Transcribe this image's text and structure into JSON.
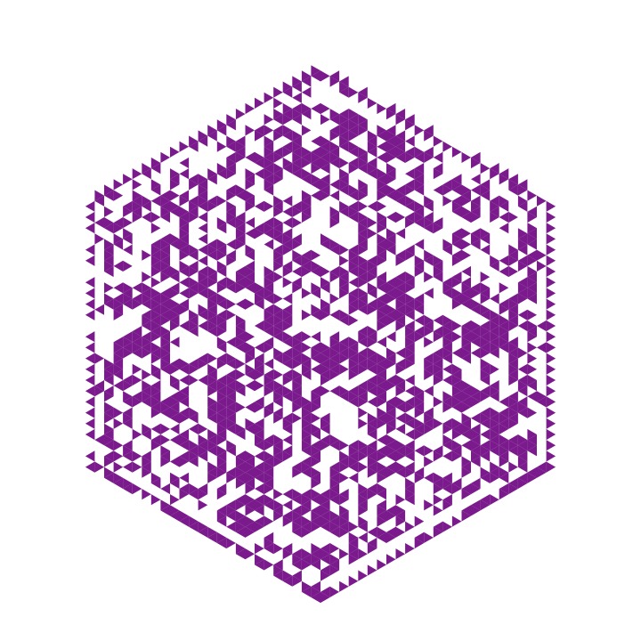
{
  "artwork": {
    "shape": "hexagon",
    "motif": "triangle-grid",
    "tile_color": "#7a1a8c",
    "background_color": "#ffffff",
    "generator": {
      "seed": 20240611,
      "fill_probability": 0.5,
      "cluster_bias": 0.55,
      "border_rows": 2,
      "gap_rows": 1
    }
  }
}
